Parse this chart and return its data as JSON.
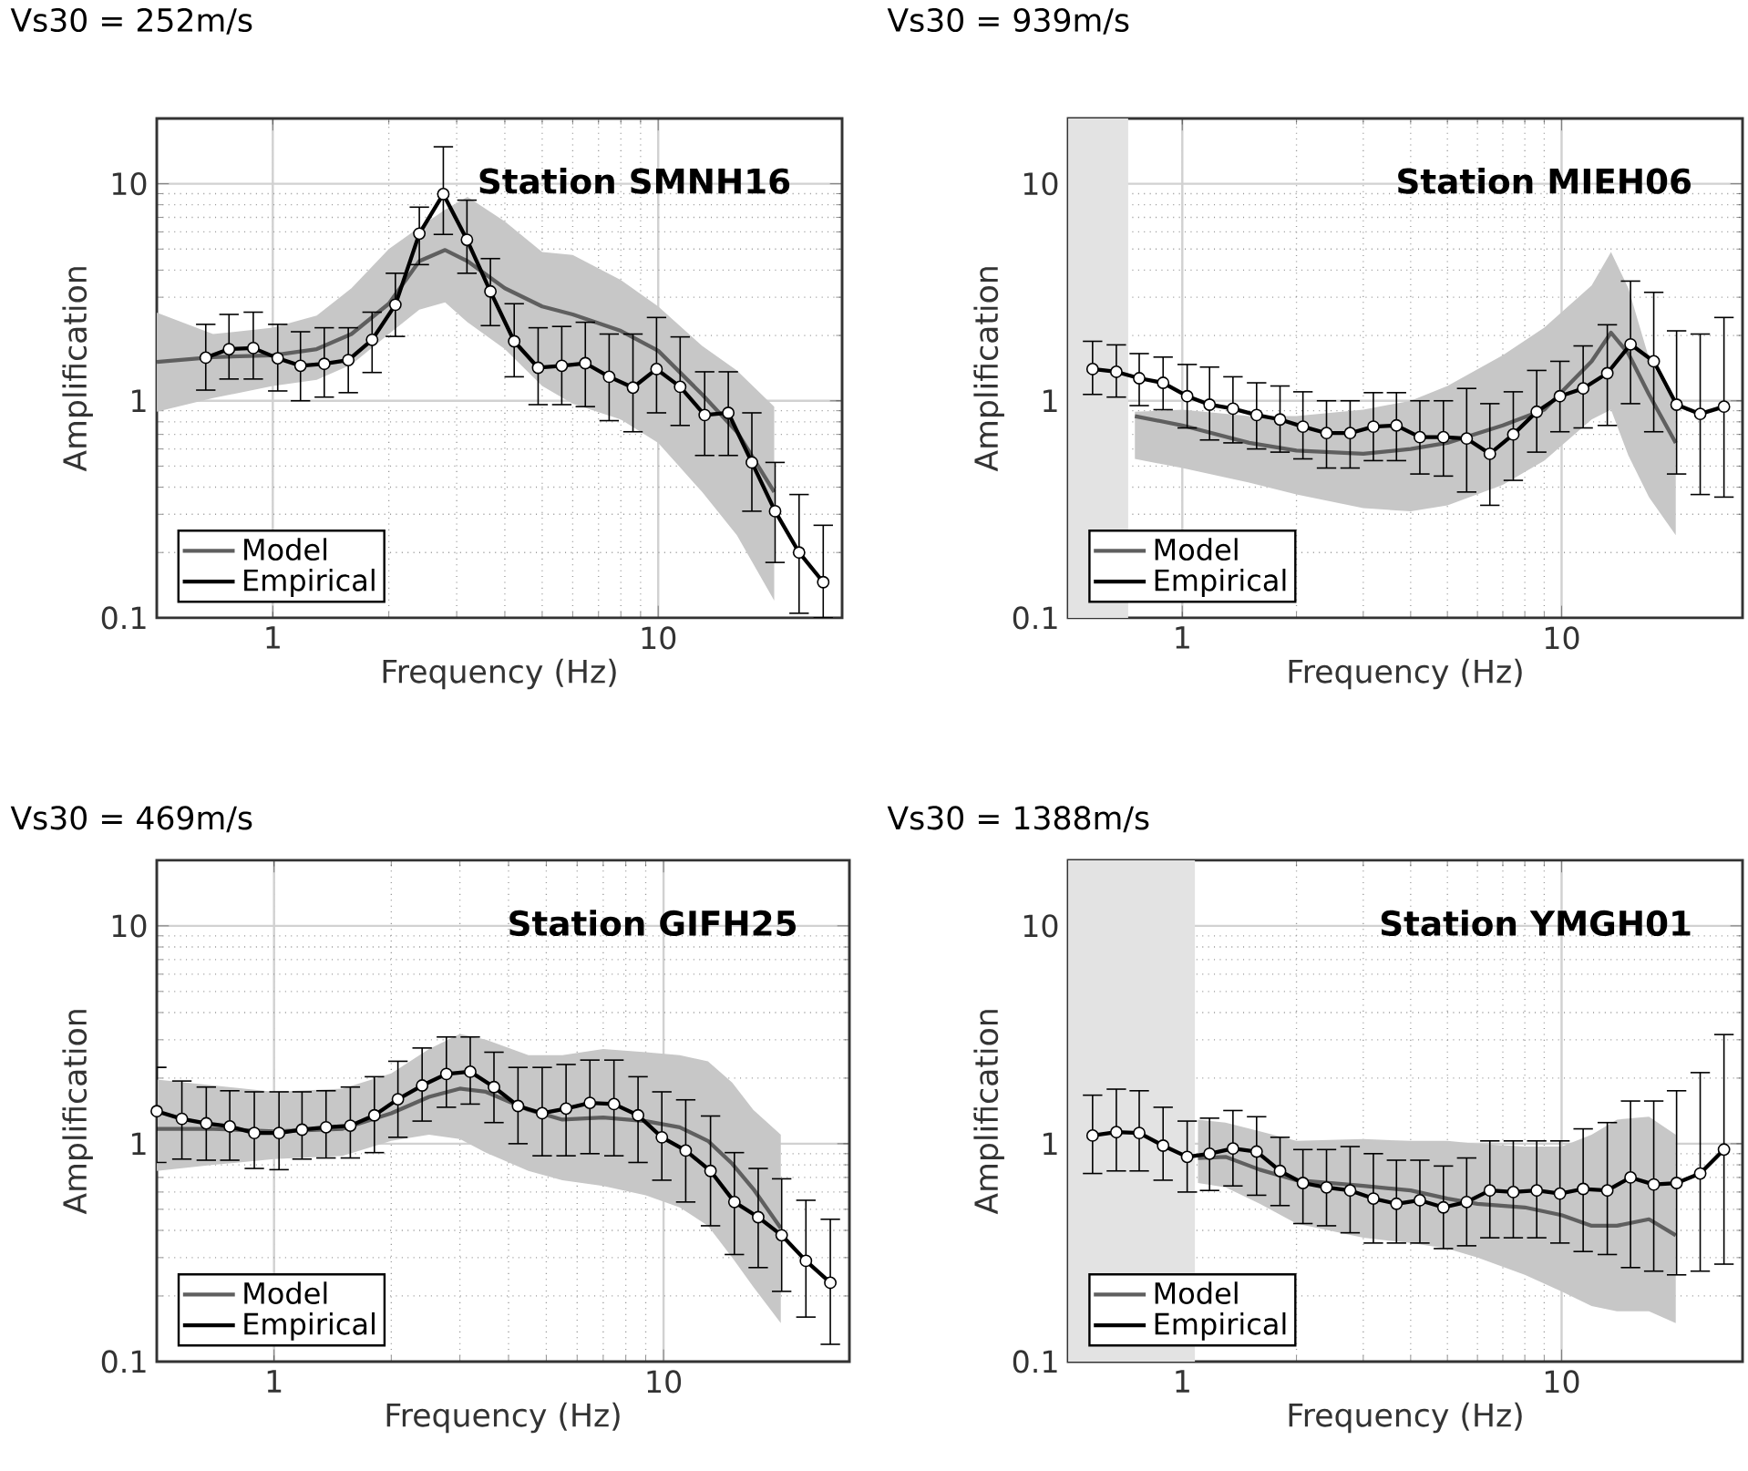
{
  "chart_data": [
    {
      "type": "line",
      "title": "Vs30 = 252m/s",
      "xlabel": "Frequency (Hz)",
      "ylabel": "Amplification",
      "annotations": [
        "Station SMNH16"
      ],
      "xlim": [
        0.5,
        30
      ],
      "ylim": [
        0.1,
        20
      ],
      "xticks": [
        1,
        10
      ],
      "yticks": [
        0.1,
        1,
        10
      ],
      "log": "xy",
      "grid": true,
      "legend": "bottom left",
      "series": [
        {
          "name": "Model",
          "type": "line",
          "color": "#5f5f5f",
          "marker": "none",
          "x": [
            0.5,
            0.7,
            1.0,
            1.3,
            1.6,
            2.0,
            2.4,
            2.8,
            3.2,
            4.0,
            5.0,
            6.0,
            8.0,
            10,
            13,
            16,
            20
          ],
          "values": [
            1.51,
            1.59,
            1.62,
            1.73,
            2.03,
            2.8,
            4.4,
            4.95,
            4.4,
            3.3,
            2.72,
            2.5,
            2.1,
            1.7,
            1.07,
            0.72,
            0.38
          ],
          "upper": [
            2.55,
            2.03,
            2.17,
            2.47,
            3.3,
            5.0,
            6.3,
            7.6,
            8.7,
            6.7,
            4.85,
            4.7,
            3.6,
            2.72,
            1.79,
            1.38,
            0.94
          ],
          "lower": [
            0.89,
            1.03,
            1.17,
            1.25,
            1.47,
            2.03,
            2.63,
            2.84,
            2.3,
            1.73,
            1.17,
            0.97,
            0.82,
            0.64,
            0.38,
            0.24,
            0.12
          ]
        },
        {
          "name": "Empirical",
          "type": "line",
          "color": "#000000",
          "marker": "circle",
          "x": [
            0.67,
            0.77,
            0.89,
            1.03,
            1.18,
            1.36,
            1.57,
            1.81,
            2.08,
            2.4,
            2.77,
            3.19,
            3.67,
            4.23,
            4.88,
            5.62,
            6.47,
            7.46,
            8.6,
            9.9,
            11.4,
            13.2,
            15.2,
            17.5,
            20.1,
            23.2,
            26.8
          ],
          "values": [
            1.58,
            1.73,
            1.75,
            1.57,
            1.45,
            1.48,
            1.54,
            1.91,
            2.77,
            5.89,
            8.96,
            5.52,
            3.19,
            1.88,
            1.42,
            1.45,
            1.49,
            1.29,
            1.15,
            1.4,
            1.16,
            0.86,
            0.88,
            0.52,
            0.31,
            0.2,
            0.146
          ],
          "errors": [
            [
              1.12,
              2.25
            ],
            [
              1.26,
              2.5
            ],
            [
              1.26,
              2.56
            ],
            [
              1.11,
              2.25
            ],
            [
              1.0,
              2.08
            ],
            [
              1.04,
              2.17
            ],
            [
              1.09,
              2.17
            ],
            [
              1.35,
              2.56
            ],
            [
              1.98,
              3.87
            ],
            [
              4.24,
              7.8
            ],
            [
              5.84,
              14.8
            ],
            [
              3.87,
              8.4
            ],
            [
              2.22,
              4.52
            ],
            [
              1.29,
              2.8
            ],
            [
              0.96,
              2.17
            ],
            [
              0.96,
              2.2
            ],
            [
              0.94,
              2.3
            ],
            [
              0.81,
              2.03
            ],
            [
              0.72,
              2.03
            ],
            [
              0.88,
              2.42
            ],
            [
              0.77,
              1.97
            ],
            [
              0.56,
              1.36
            ],
            [
              0.56,
              1.36
            ],
            [
              0.31,
              0.88
            ],
            [
              0.18,
              0.52
            ],
            [
              0.105,
              0.37
            ],
            [
              0.1,
              0.267
            ]
          ]
        }
      ]
    },
    {
      "type": "line",
      "title": "Vs30 = 939m/s",
      "xlabel": "Frequency (Hz)",
      "ylabel": "Amplification",
      "annotations": [
        "Station MIEH06"
      ],
      "xlim": [
        0.5,
        30
      ],
      "ylim": [
        0.1,
        20
      ],
      "xticks": [
        1,
        10
      ],
      "yticks": [
        0.1,
        1,
        10
      ],
      "log": "xy",
      "grid": true,
      "legend": "bottom left",
      "bands": [
        {
          "axis": "x",
          "from": 0.5,
          "to": 0.72,
          "color": "#e3e3e3"
        }
      ],
      "series": [
        {
          "name": "Model",
          "type": "line",
          "color": "#5f5f5f",
          "marker": "none",
          "x": [
            0.75,
            1.0,
            1.5,
            2.0,
            3.0,
            4.0,
            5.0,
            7.0,
            9.0,
            12,
            13.5,
            15,
            17,
            20
          ],
          "values": [
            0.85,
            0.77,
            0.64,
            0.59,
            0.57,
            0.6,
            0.64,
            0.77,
            0.91,
            1.52,
            2.06,
            1.65,
            1.07,
            0.64
          ],
          "upper": [
            0.89,
            0.91,
            0.85,
            0.85,
            0.91,
            1.0,
            1.17,
            1.62,
            2.17,
            3.4,
            4.85,
            3.3,
            1.57,
            0.94
          ],
          "lower": [
            0.54,
            0.49,
            0.42,
            0.37,
            0.32,
            0.31,
            0.33,
            0.41,
            0.53,
            0.82,
            0.91,
            0.56,
            0.36,
            0.24
          ]
        },
        {
          "name": "Empirical",
          "type": "line",
          "color": "#000000",
          "marker": "circle",
          "x": [
            0.58,
            0.67,
            0.77,
            0.89,
            1.03,
            1.18,
            1.36,
            1.57,
            1.81,
            2.08,
            2.4,
            2.77,
            3.19,
            3.67,
            4.23,
            4.88,
            5.62,
            6.47,
            7.46,
            8.6,
            9.9,
            11.4,
            13.2,
            15.2,
            17.5,
            20.1,
            23.2,
            26.8
          ],
          "values": [
            1.4,
            1.36,
            1.27,
            1.21,
            1.05,
            0.96,
            0.92,
            0.86,
            0.82,
            0.76,
            0.71,
            0.71,
            0.76,
            0.77,
            0.68,
            0.68,
            0.67,
            0.57,
            0.7,
            0.89,
            1.05,
            1.14,
            1.34,
            1.82,
            1.52,
            0.96,
            0.87,
            0.94
          ],
          "errors": [
            [
              1.07,
              1.88
            ],
            [
              1.04,
              1.81
            ],
            [
              0.95,
              1.65
            ],
            [
              0.91,
              1.59
            ],
            [
              0.75,
              1.47
            ],
            [
              0.66,
              1.43
            ],
            [
              0.64,
              1.29
            ],
            [
              0.6,
              1.21
            ],
            [
              0.58,
              1.17
            ],
            [
              0.54,
              1.1
            ],
            [
              0.49,
              1.0
            ],
            [
              0.49,
              1.0
            ],
            [
              0.53,
              1.09
            ],
            [
              0.53,
              1.09
            ],
            [
              0.46,
              1.0
            ],
            [
              0.45,
              1.0
            ],
            [
              0.38,
              1.14
            ],
            [
              0.33,
              0.97
            ],
            [
              0.43,
              1.1
            ],
            [
              0.58,
              1.38
            ],
            [
              0.72,
              1.52
            ],
            [
              0.75,
              1.79
            ],
            [
              0.77,
              2.24
            ],
            [
              0.97,
              3.56
            ],
            [
              0.72,
              3.16
            ],
            [
              0.46,
              2.1
            ],
            [
              0.37,
              2.03
            ],
            [
              0.36,
              2.42
            ]
          ]
        }
      ]
    },
    {
      "type": "line",
      "title": "Vs30 = 469m/s",
      "xlabel": "Frequency (Hz)",
      "ylabel": "Amplification",
      "annotations": [
        "Station GIFH25"
      ],
      "xlim": [
        0.5,
        30
      ],
      "ylim": [
        0.1,
        20
      ],
      "xticks": [
        1,
        10
      ],
      "yticks": [
        0.1,
        1,
        10
      ],
      "log": "xy",
      "grid": true,
      "legend": "bottom left",
      "series": [
        {
          "name": "Model",
          "type": "line",
          "color": "#5f5f5f",
          "marker": "none",
          "x": [
            0.5,
            0.7,
            1.0,
            1.5,
            2.0,
            2.5,
            3.0,
            3.5,
            4.5,
            5.5,
            7,
            9,
            11,
            13,
            15,
            17,
            20
          ],
          "values": [
            1.17,
            1.17,
            1.14,
            1.17,
            1.38,
            1.64,
            1.79,
            1.73,
            1.43,
            1.29,
            1.32,
            1.27,
            1.19,
            1.03,
            0.81,
            0.62,
            0.41
          ],
          "upper": [
            1.97,
            1.85,
            1.73,
            1.79,
            2.1,
            2.72,
            3.19,
            3.0,
            2.55,
            2.55,
            2.72,
            2.63,
            2.55,
            2.39,
            1.91,
            1.43,
            1.1
          ],
          "lower": [
            0.75,
            0.8,
            0.85,
            0.88,
            1.03,
            1.1,
            1.05,
            0.91,
            0.75,
            0.68,
            0.64,
            0.58,
            0.51,
            0.42,
            0.3,
            0.22,
            0.15
          ]
        },
        {
          "name": "Empirical",
          "type": "line",
          "color": "#000000",
          "marker": "circle",
          "x": [
            0.5,
            0.58,
            0.67,
            0.77,
            0.89,
            1.03,
            1.18,
            1.36,
            1.57,
            1.81,
            2.08,
            2.4,
            2.77,
            3.19,
            3.67,
            4.23,
            4.88,
            5.62,
            6.47,
            7.46,
            8.6,
            9.9,
            11.4,
            13.2,
            15.2,
            17.5,
            20.1,
            23.2,
            26.8
          ],
          "values": [
            1.41,
            1.3,
            1.24,
            1.2,
            1.12,
            1.12,
            1.16,
            1.19,
            1.21,
            1.35,
            1.6,
            1.85,
            2.09,
            2.14,
            1.82,
            1.49,
            1.38,
            1.45,
            1.54,
            1.52,
            1.35,
            1.07,
            0.93,
            0.75,
            0.54,
            0.46,
            0.38,
            0.29,
            0.23
          ],
          "errors": [
            [
              0.82,
              2.24
            ],
            [
              0.85,
              1.94
            ],
            [
              0.84,
              1.82
            ],
            [
              0.84,
              1.75
            ],
            [
              0.77,
              1.73
            ],
            [
              0.76,
              1.73
            ],
            [
              0.85,
              1.73
            ],
            [
              0.86,
              1.75
            ],
            [
              0.86,
              1.82
            ],
            [
              0.91,
              2.03
            ],
            [
              1.07,
              2.39
            ],
            [
              1.27,
              2.75
            ],
            [
              1.47,
              3.09
            ],
            [
              1.52,
              3.09
            ],
            [
              1.25,
              2.63
            ],
            [
              1.0,
              2.24
            ],
            [
              0.88,
              2.24
            ],
            [
              0.88,
              2.31
            ],
            [
              0.9,
              2.42
            ],
            [
              0.88,
              2.42
            ],
            [
              0.82,
              2.03
            ],
            [
              0.68,
              1.73
            ],
            [
              0.54,
              1.59
            ],
            [
              0.42,
              1.34
            ],
            [
              0.31,
              0.91
            ],
            [
              0.27,
              0.77
            ],
            [
              0.21,
              0.69
            ],
            [
              0.16,
              0.55
            ],
            [
              0.12,
              0.45
            ]
          ]
        }
      ]
    },
    {
      "type": "line",
      "title": "Vs30 = 1388m/s",
      "xlabel": "Frequency (Hz)",
      "ylabel": "Amplification",
      "annotations": [
        "Station YMGH01"
      ],
      "xlim": [
        0.5,
        30
      ],
      "ylim": [
        0.1,
        20
      ],
      "xticks": [
        1,
        10
      ],
      "yticks": [
        0.1,
        1,
        10
      ],
      "log": "xy",
      "grid": true,
      "legend": "bottom left",
      "bands": [
        {
          "axis": "x",
          "from": 0.5,
          "to": 1.08,
          "color": "#e3e3e3"
        }
      ],
      "series": [
        {
          "name": "Model",
          "type": "line",
          "color": "#5f5f5f",
          "marker": "none",
          "x": [
            1.1,
            1.3,
            1.6,
            2.0,
            3.0,
            4.0,
            5.0,
            6.0,
            8.0,
            10,
            12,
            14,
            17,
            20
          ],
          "values": [
            0.86,
            0.87,
            0.76,
            0.68,
            0.64,
            0.61,
            0.56,
            0.53,
            0.51,
            0.47,
            0.42,
            0.42,
            0.45,
            0.38
          ],
          "upper": [
            1.29,
            1.25,
            1.14,
            1.03,
            1.05,
            1.03,
            1.03,
            1.0,
            0.97,
            0.97,
            1.1,
            1.29,
            1.33,
            1.1
          ],
          "lower": [
            0.66,
            0.63,
            0.53,
            0.43,
            0.37,
            0.35,
            0.33,
            0.3,
            0.25,
            0.21,
            0.18,
            0.17,
            0.17,
            0.15
          ]
        },
        {
          "name": "Empirical",
          "type": "line",
          "color": "#000000",
          "marker": "circle",
          "x": [
            0.58,
            0.67,
            0.77,
            0.89,
            1.03,
            1.18,
            1.36,
            1.57,
            1.81,
            2.08,
            2.4,
            2.77,
            3.19,
            3.67,
            4.23,
            4.88,
            5.62,
            6.47,
            7.46,
            8.6,
            9.9,
            11.4,
            13.2,
            15.2,
            17.5,
            20.1,
            23.2,
            26.8
          ],
          "values": [
            1.09,
            1.13,
            1.12,
            0.98,
            0.87,
            0.9,
            0.95,
            0.92,
            0.75,
            0.66,
            0.63,
            0.61,
            0.56,
            0.53,
            0.55,
            0.51,
            0.54,
            0.61,
            0.6,
            0.61,
            0.59,
            0.62,
            0.61,
            0.7,
            0.65,
            0.66,
            0.73,
            0.94
          ],
          "errors": [
            [
              0.73,
              1.67
            ],
            [
              0.75,
              1.78
            ],
            [
              0.75,
              1.75
            ],
            [
              0.68,
              1.47
            ],
            [
              0.6,
              1.27
            ],
            [
              0.61,
              1.31
            ],
            [
              0.64,
              1.42
            ],
            [
              0.58,
              1.33
            ],
            [
              0.52,
              1.07
            ],
            [
              0.43,
              0.94
            ],
            [
              0.42,
              0.94
            ],
            [
              0.39,
              0.97
            ],
            [
              0.35,
              0.9
            ],
            [
              0.35,
              0.84
            ],
            [
              0.35,
              0.84
            ],
            [
              0.33,
              0.79
            ],
            [
              0.34,
              0.86
            ],
            [
              0.37,
              1.03
            ],
            [
              0.37,
              1.03
            ],
            [
              0.37,
              1.03
            ],
            [
              0.35,
              1.03
            ],
            [
              0.32,
              1.17
            ],
            [
              0.31,
              1.25
            ],
            [
              0.27,
              1.57
            ],
            [
              0.26,
              1.57
            ],
            [
              0.25,
              1.75
            ],
            [
              0.26,
              2.12
            ],
            [
              0.28,
              3.17
            ]
          ]
        }
      ]
    }
  ]
}
